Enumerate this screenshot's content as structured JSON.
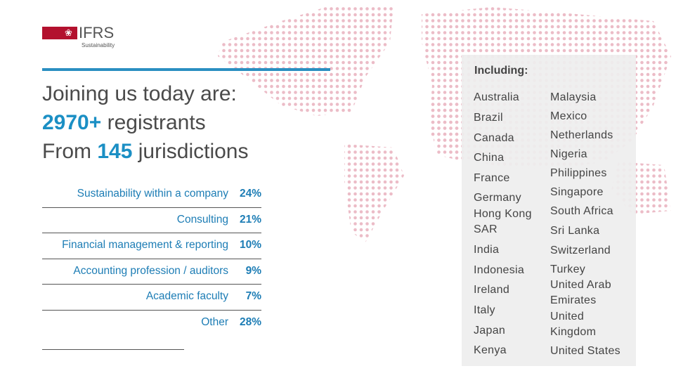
{
  "logo": {
    "title": "IFRS",
    "subtitle": "Sustainability"
  },
  "heading": {
    "line1": "Joining us today are:",
    "registrants_count": "2970+",
    "registrants_text": "registrants",
    "from": "From",
    "jurisdictions_count": "145",
    "jurisdictions_text": "jurisdictions"
  },
  "breakdown": {
    "rows": [
      [
        "Sustainability within a company",
        "24%"
      ],
      [
        "Consulting",
        "21%"
      ],
      [
        "Financial management & reporting",
        "10%"
      ],
      [
        "Accounting profession / auditors",
        "9%"
      ],
      [
        "Academic faculty",
        "7%"
      ],
      [
        "Other",
        "28%"
      ]
    ]
  },
  "including": {
    "title": "Including:",
    "column1": [
      "Australia",
      "Brazil",
      "Canada",
      "China",
      "France",
      "Germany",
      "Hong Kong SAR",
      "India",
      "Indonesia",
      "Ireland",
      "Italy",
      "Japan",
      "Kenya"
    ],
    "column2": [
      "Malaysia",
      "Mexico",
      "Netherlands",
      "Nigeria",
      "Philippines",
      "Singapore",
      "South Africa",
      "Sri Lanka",
      "Switzerland",
      "Turkey",
      "United Arab Emirates",
      "United Kingdom",
      "United States"
    ]
  }
}
